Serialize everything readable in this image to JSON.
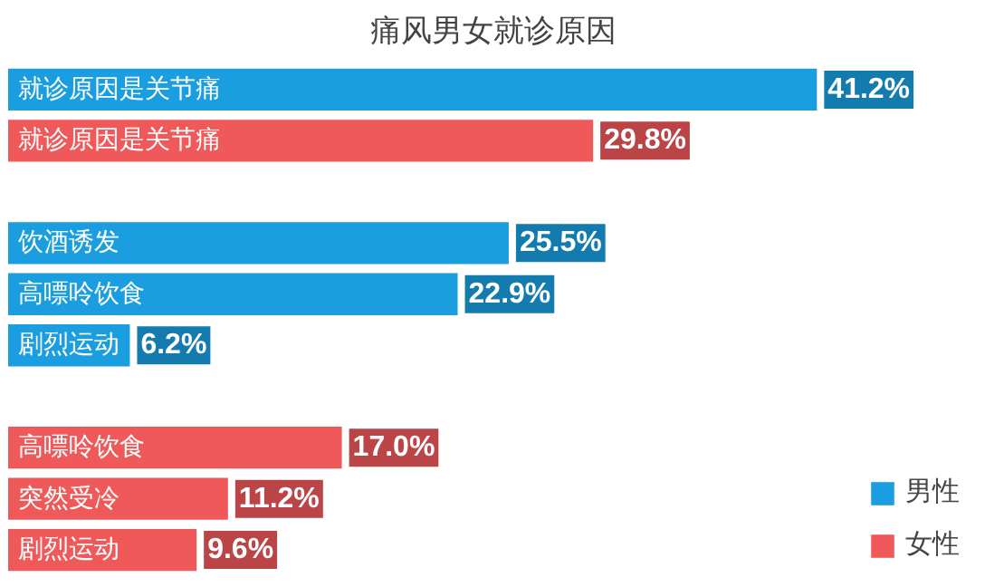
{
  "chart_data": {
    "type": "bar",
    "orientation": "horizontal",
    "title": "痛风男女就诊原因",
    "categories": [
      "就诊原因是关节痛",
      "就诊原因是关节痛",
      null,
      "饮酒诱发",
      "高嘌呤饮食",
      "剧烈运动",
      null,
      "高嘌呤饮食",
      "突然受冷",
      "剧烈运动"
    ],
    "series": [
      {
        "name": "男性",
        "color": "#1a9ee0",
        "values": [
          41.2,
          null,
          null,
          25.5,
          22.9,
          6.2,
          null,
          null,
          null,
          null
        ],
        "value_labels": [
          "41.2%",
          null,
          null,
          "25.5%",
          "22.9%",
          "6.2%",
          null,
          null,
          null,
          null
        ]
      },
      {
        "name": "女性",
        "color": "#f0595a",
        "values": [
          null,
          29.8,
          null,
          null,
          null,
          null,
          null,
          17.0,
          11.2,
          9.6
        ],
        "value_labels": [
          null,
          "29.8%",
          null,
          null,
          null,
          null,
          null,
          "17.0%",
          "11.2%",
          "9.6%"
        ]
      }
    ],
    "legend": "bottom right",
    "grid": false
  }
}
